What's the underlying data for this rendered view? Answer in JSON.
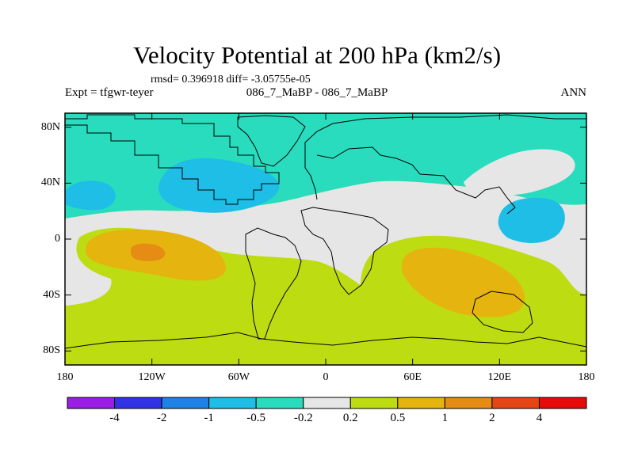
{
  "title": "Velocity Potential at 200 hPa (km2/s)",
  "stats_line": "rmsd= 0.396918  diff= -3.05755e-05",
  "experiment_label": "Expt = tfgwr-teyer",
  "experiment_diff": "086_7_MaBP - 086_7_MaBP",
  "season": "ANN",
  "map": {
    "projection": "cylindrical-equidistant",
    "lon_range": [
      -180,
      180
    ],
    "lat_range": [
      -90,
      90
    ],
    "lat_labels": [
      {
        "value": 80,
        "text": "80N"
      },
      {
        "value": 40,
        "text": "40N"
      },
      {
        "value": 0,
        "text": "0"
      },
      {
        "value": -40,
        "text": "40S"
      },
      {
        "value": -80,
        "text": "80S"
      }
    ],
    "lon_labels": [
      {
        "value": -180,
        "text": "180"
      },
      {
        "value": -120,
        "text": "120W"
      },
      {
        "value": -60,
        "text": "60W"
      },
      {
        "value": 0,
        "text": "0"
      },
      {
        "value": 60,
        "text": "60E"
      },
      {
        "value": 120,
        "text": "120E"
      },
      {
        "value": 180,
        "text": "180"
      }
    ]
  },
  "colorbar": {
    "colors": [
      "#9a1ee6",
      "#3232e6",
      "#1e82e6",
      "#1ebee6",
      "#2adcbe",
      "#e6e6e6",
      "#bedc12",
      "#e6b40e",
      "#e68c14",
      "#e64614",
      "#e60a0a"
    ],
    "labels": [
      "-4",
      "-2",
      "-1",
      "-0.5",
      "-0.2",
      "0.2",
      "0.5",
      "1",
      "2",
      "4"
    ]
  },
  "chart_data": {
    "type": "heatmap",
    "title": "Velocity Potential at 200 hPa (km2/s)",
    "levels": [
      -4,
      -2,
      -1,
      -0.5,
      -0.2,
      0.2,
      0.5,
      1,
      2,
      4
    ],
    "units": "km2/s",
    "regions": [
      {
        "name": "northern-band",
        "range": "-0.5 to -0.2"
      },
      {
        "name": "north-pacific-low",
        "range": "-1 to -0.5",
        "lon": -115,
        "lat": 30
      },
      {
        "name": "north-atlantic-low",
        "range": "-1 to -0.5",
        "lon": -168,
        "lat": 30
      },
      {
        "name": "west-pacific-low",
        "range": "-1 to -0.5",
        "lon": 125,
        "lat": 10
      },
      {
        "name": "equatorial-neutral-band",
        "range": "-0.2 to 0.2"
      },
      {
        "name": "eastern-pacific-high",
        "range": "0.5 to 1",
        "lon": -120,
        "lat": -8
      },
      {
        "name": "eastern-pacific-core",
        "range": "1 to 2",
        "lon": -120,
        "lat": -10
      },
      {
        "name": "indian-ocean-high",
        "range": "0.5 to 1",
        "lon": 90,
        "lat": -32
      },
      {
        "name": "southern-band",
        "range": "0.2 to 0.5"
      }
    ]
  }
}
